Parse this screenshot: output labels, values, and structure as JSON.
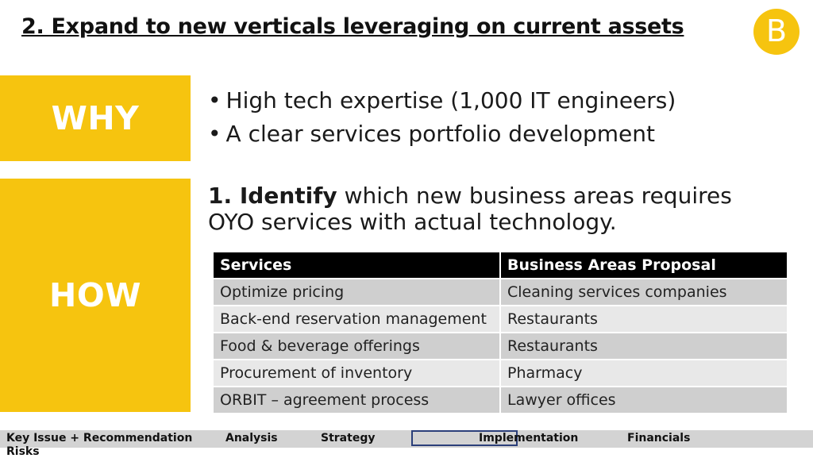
{
  "title": "2. Expand to new verticals leveraging on current assets",
  "logo_letter": "B",
  "why": {
    "label": "WHY",
    "bullets": [
      "High tech expertise (1,000 IT engineers)",
      "A clear services portfolio development"
    ]
  },
  "how": {
    "label": "HOW",
    "step_bold": "1. Identify",
    "step_rest": " which new business areas requires OYO services with actual technology."
  },
  "table": {
    "headers": [
      "Services",
      "Business Areas Proposal"
    ],
    "rows": [
      [
        "Optimize pricing",
        "Cleaning services companies"
      ],
      [
        "Back-end reservation management",
        "Restaurants"
      ],
      [
        "Food & beverage offerings",
        "Restaurants"
      ],
      [
        "Procurement of inventory",
        "Pharmacy"
      ],
      [
        "ORBIT – agreement process",
        "Lawyer offices"
      ]
    ]
  },
  "nav": {
    "items": [
      "Key Issue + Recommendation",
      "Analysis",
      "Strategy",
      "Implementation",
      "Financials",
      "Risks"
    ],
    "active": "Implementation"
  },
  "colors": {
    "accent": "#f6c40f",
    "table_header": "#000000",
    "row_dark": "#cfcfcf",
    "row_light": "#e8e8e8",
    "nav_bar": "#d3d3d3",
    "nav_highlight": "#2b3f7a"
  }
}
